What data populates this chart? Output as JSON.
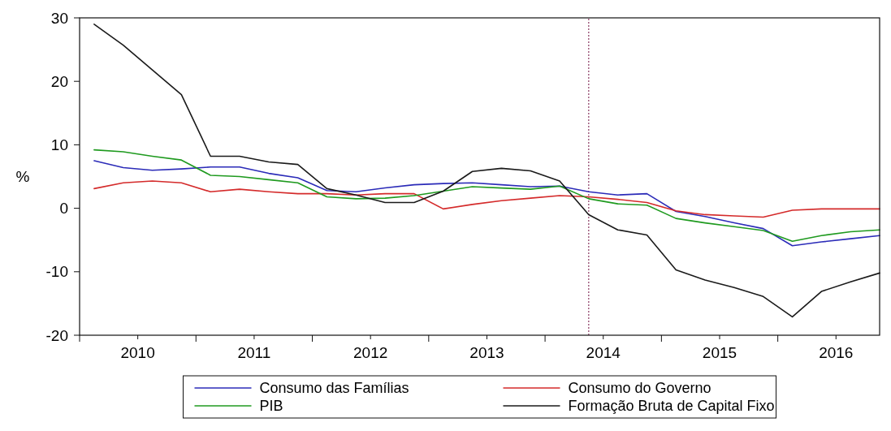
{
  "chart_data": {
    "type": "line",
    "ylabel": "%",
    "x": [
      2010.125,
      2010.375,
      2010.625,
      2010.875,
      2011.125,
      2011.375,
      2011.625,
      2011.875,
      2012.125,
      2012.375,
      2012.625,
      2012.875,
      2013.125,
      2013.375,
      2013.625,
      2013.875,
      2014.125,
      2014.375,
      2014.625,
      2014.875,
      2015.125,
      2015.375,
      2015.625,
      2015.875,
      2016.125,
      2016.375,
      2016.625,
      2016.875
    ],
    "series": [
      {
        "name": "Consumo das Famílias",
        "color": "#2b2bb8",
        "values": [
          7.5,
          6.4,
          6.0,
          6.2,
          6.5,
          6.5,
          5.5,
          4.8,
          2.8,
          2.6,
          3.2,
          3.7,
          3.9,
          4.0,
          3.7,
          3.4,
          3.5,
          2.6,
          2.1,
          2.3,
          -0.5,
          -1.3,
          -2.3,
          -3.2,
          -5.9,
          -5.3,
          -4.8,
          -4.3
        ]
      },
      {
        "name": "Consumo do Governo",
        "color": "#d42a2a",
        "values": [
          3.1,
          4.0,
          4.3,
          4.0,
          2.6,
          3.0,
          2.6,
          2.3,
          2.3,
          2.1,
          2.3,
          2.3,
          -0.1,
          0.6,
          1.2,
          1.6,
          2.0,
          1.8,
          1.4,
          0.9,
          -0.4,
          -1.0,
          -1.2,
          -1.4,
          -0.3,
          -0.1,
          -0.1,
          -0.1
        ]
      },
      {
        "name": "PIB",
        "color": "#1f9a1f",
        "values": [
          9.2,
          8.9,
          8.2,
          7.6,
          5.2,
          5.0,
          4.5,
          4.0,
          1.8,
          1.5,
          1.6,
          2.0,
          2.7,
          3.4,
          3.2,
          3.0,
          3.5,
          1.5,
          0.7,
          0.5,
          -1.6,
          -2.3,
          -2.9,
          -3.5,
          -5.2,
          -4.3,
          -3.7,
          -3.4
        ]
      },
      {
        "name": "Formação Bruta de Capital Fixo",
        "color": "#1a1a1a",
        "values": [
          29.0,
          25.7,
          21.8,
          17.9,
          8.2,
          8.2,
          7.3,
          6.9,
          3.1,
          2.1,
          0.9,
          0.9,
          2.7,
          5.8,
          6.3,
          5.9,
          4.3,
          -1.0,
          -3.4,
          -4.2,
          -9.7,
          -11.3,
          -12.5,
          -13.9,
          -17.1,
          -13.1,
          -11.6,
          -10.2
        ]
      }
    ],
    "xlim": [
      2010,
      2016.875
    ],
    "xticks": [
      {
        "value": 2010,
        "label": null
      },
      {
        "value": 2010.5,
        "label": "2010"
      },
      {
        "value": 2011,
        "label": null
      },
      {
        "value": 2011.5,
        "label": "2011"
      },
      {
        "value": 2012,
        "label": null
      },
      {
        "value": 2012.5,
        "label": "2012"
      },
      {
        "value": 2013,
        "label": null
      },
      {
        "value": 2013.5,
        "label": "2013"
      },
      {
        "value": 2014,
        "label": null
      },
      {
        "value": 2014.5,
        "label": "2014"
      },
      {
        "value": 2015,
        "label": null
      },
      {
        "value": 2015.5,
        "label": "2015"
      },
      {
        "value": 2016,
        "label": null
      },
      {
        "value": 2016.5,
        "label": "2016"
      }
    ],
    "ylim": [
      -20,
      30
    ],
    "yticks": [
      -20,
      -10,
      0,
      10,
      20,
      30
    ],
    "ref_lines": [
      {
        "axis": "x",
        "value": 2014.375,
        "color": "#8b3a62",
        "line_style": "dotted"
      }
    ],
    "grid": false,
    "legend": "bottom",
    "line_style": "solid",
    "marker": "none"
  }
}
